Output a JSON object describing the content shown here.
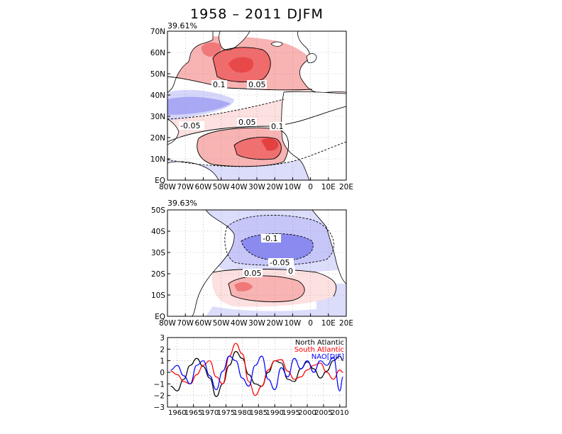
{
  "title": "1958 – 2011 DJFM",
  "chart_data": [
    {
      "type": "heatmap",
      "name": "north-atlantic-map",
      "variance_label": "39.61%",
      "xticks": [
        "80W",
        "70W",
        "60W",
        "50W",
        "40W",
        "30W",
        "20W",
        "10W",
        "0",
        "10E",
        "20E"
      ],
      "yticks": [
        "EQ",
        "10N",
        "20N",
        "30N",
        "40N",
        "50N",
        "60N",
        "70N"
      ],
      "xlim": [
        -80,
        20
      ],
      "ylim": [
        0,
        70
      ],
      "contour_labels": [
        "0.1",
        "0.05",
        "-0.05",
        "0.05",
        "0.1"
      ]
    },
    {
      "type": "heatmap",
      "name": "south-atlantic-map",
      "variance_label": "39.63%",
      "xticks": [
        "80W",
        "70W",
        "60W",
        "50W",
        "40W",
        "30W",
        "20W",
        "10W",
        "0",
        "10E",
        "20E"
      ],
      "yticks": [
        "EQ",
        "10S",
        "20S",
        "30S",
        "40S",
        "50S"
      ],
      "xlim": [
        -80,
        20
      ],
      "ylim": [
        -50,
        0
      ],
      "contour_labels": [
        "-0.1",
        "-0.05",
        "0",
        "0.05"
      ]
    },
    {
      "type": "line",
      "name": "timeseries",
      "x": [
        1958,
        1960,
        1962,
        1964,
        1966,
        1968,
        1970,
        1972,
        1974,
        1976,
        1978,
        1980,
        1982,
        1984,
        1986,
        1988,
        1990,
        1992,
        1994,
        1996,
        1998,
        2000,
        2002,
        2004,
        2006,
        2008,
        2010,
        2011
      ],
      "ylim": [
        -3,
        3
      ],
      "yticks": [
        "−3",
        "−2",
        "−1",
        "0",
        "1",
        "2",
        "3"
      ],
      "xticks": [
        "1960",
        "1965",
        "1970",
        "1975",
        "1980",
        "1985",
        "1990",
        "1995",
        "2000",
        "2005",
        "2010"
      ],
      "xtick_values": [
        1960,
        1965,
        1970,
        1975,
        1980,
        1985,
        1990,
        1995,
        2000,
        2005,
        2010
      ],
      "series": [
        {
          "name": "North Atlantic",
          "color": "#000000",
          "values": [
            -1.2,
            -1.6,
            -0.6,
            0.6,
            1.2,
            0.5,
            -0.5,
            -2.1,
            -1.0,
            0.6,
            1.8,
            1.2,
            -0.2,
            -1.0,
            -1.2,
            0.0,
            1.0,
            0.8,
            -0.6,
            -0.8,
            0.3,
            0.9,
            0.3,
            -0.5,
            0.1,
            1.0,
            1.4,
            1.0
          ]
        },
        {
          "name": "South Atlantic",
          "color": "#ff0000",
          "values": [
            0.1,
            -0.2,
            -0.8,
            -1.0,
            -0.2,
            0.6,
            1.0,
            -0.4,
            -1.0,
            1.4,
            2.5,
            1.6,
            -0.8,
            -2.0,
            -1.2,
            0.2,
            1.0,
            1.1,
            0.1,
            -0.6,
            -0.4,
            0.2,
            0.6,
            0.8,
            0.0,
            -0.6,
            0.2,
            0.0
          ]
        },
        {
          "name": "NAO[DJF]",
          "color": "#0000ff",
          "values": [
            0.2,
            0.6,
            -0.3,
            -1.0,
            0.6,
            1.0,
            -0.3,
            -1.5,
            0.1,
            1.4,
            1.0,
            -0.5,
            -1.2,
            0.6,
            1.4,
            -0.6,
            -1.5,
            0.4,
            -0.4,
            1.2,
            0.3,
            1.0,
            0.0,
            1.0,
            0.6,
            1.3,
            -1.6,
            -0.4
          ]
        }
      ]
    }
  ]
}
